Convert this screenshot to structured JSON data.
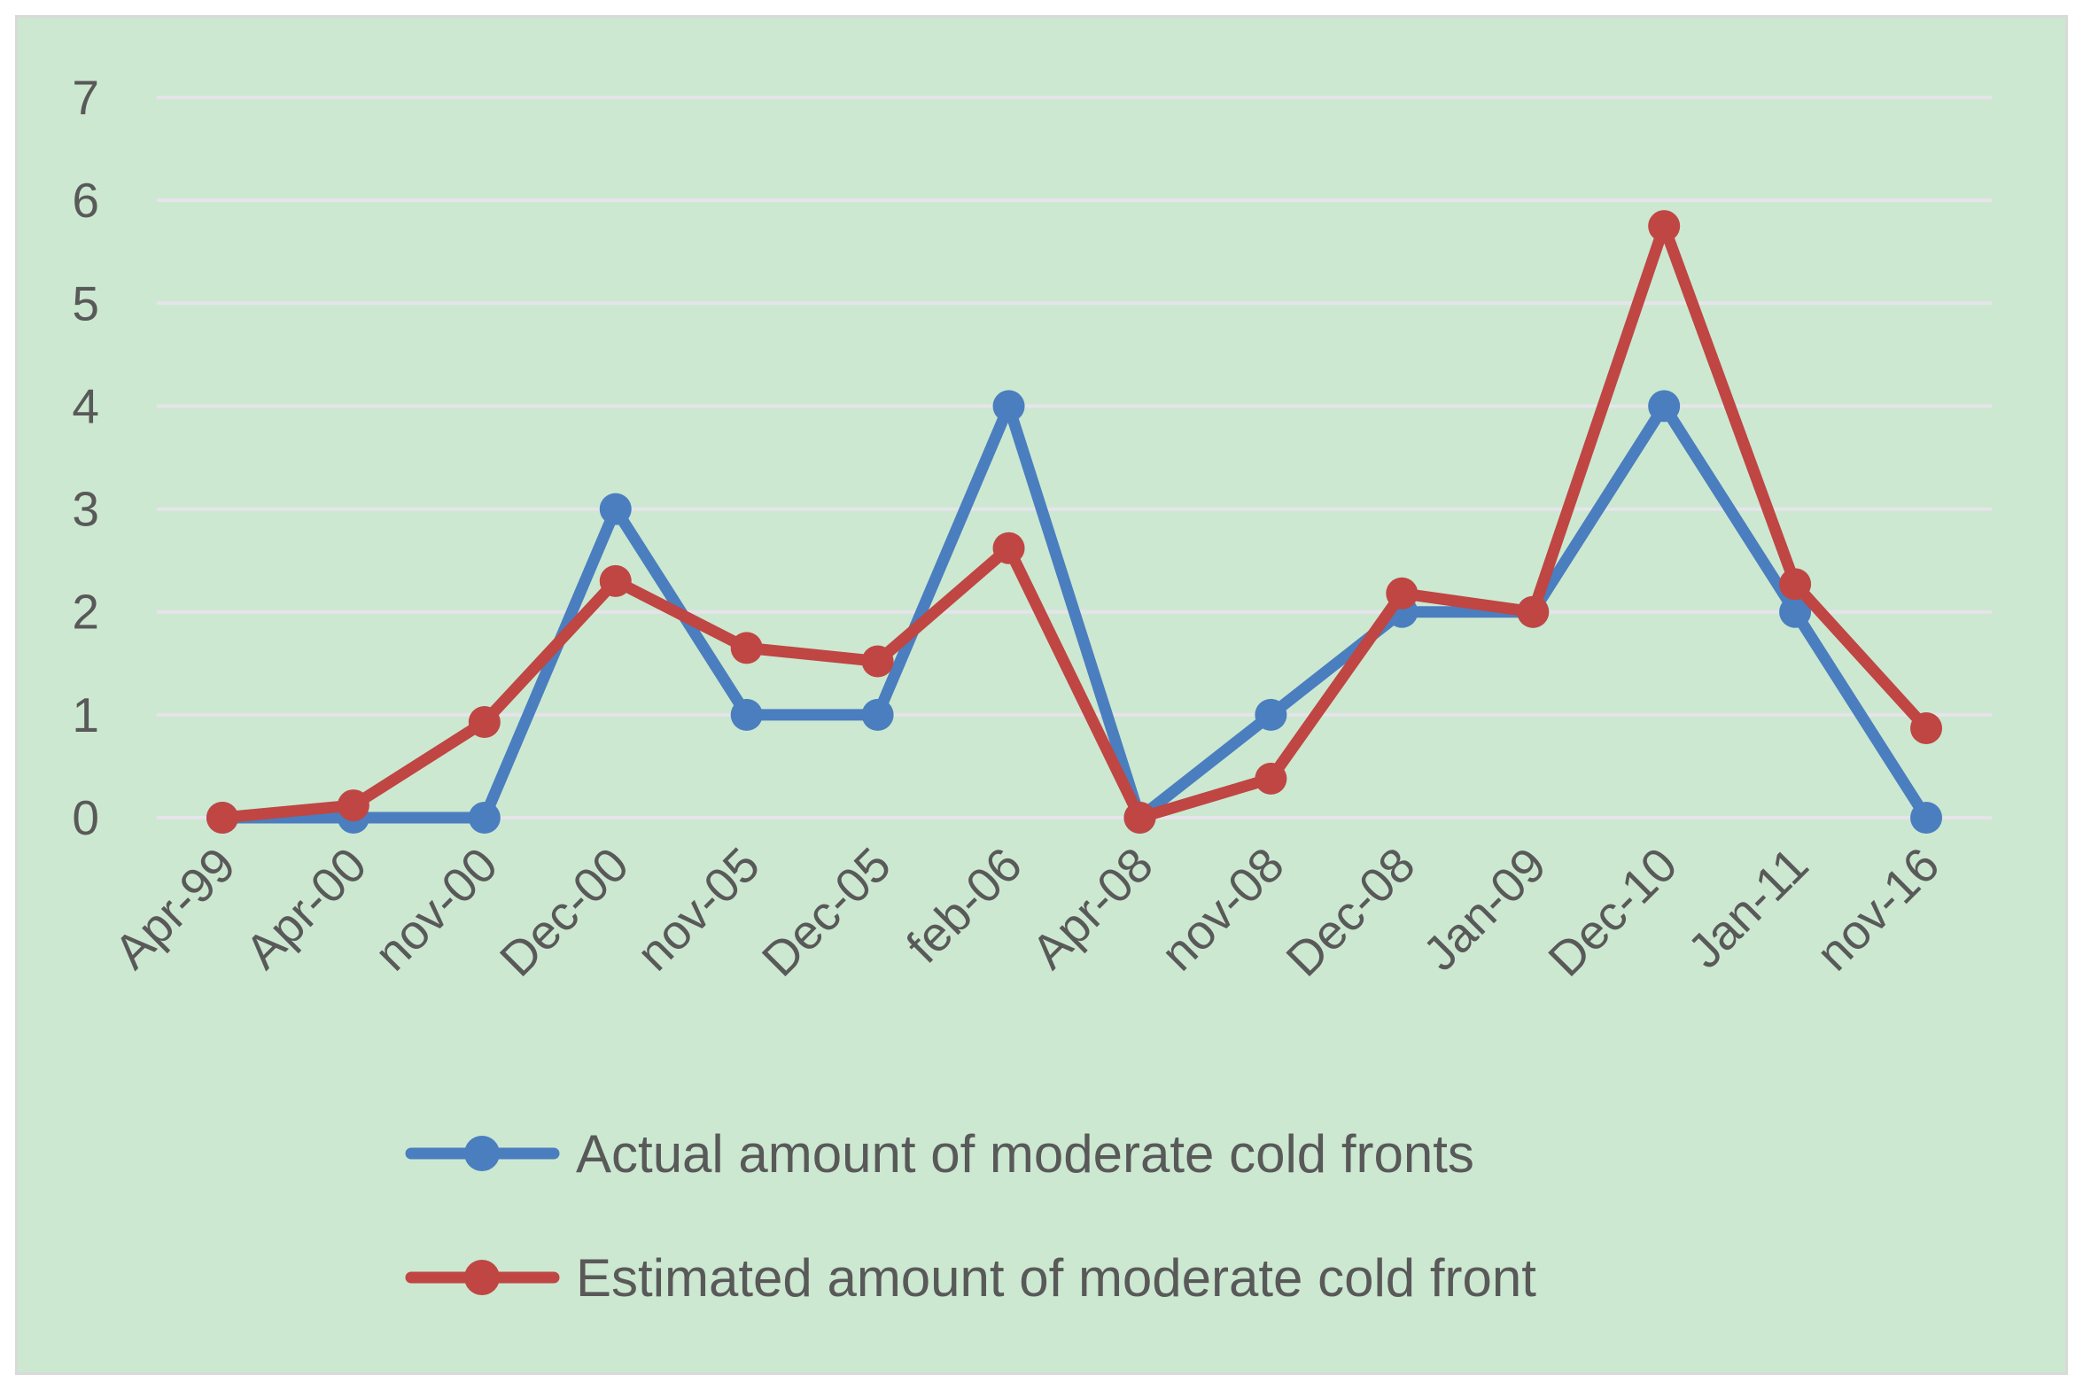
{
  "colors": {
    "background": "#cce8d1",
    "gridline": "#e6e4ea",
    "text": "#595959",
    "actual": "#4a7ebf",
    "estimated": "#bf4643"
  },
  "chart_data": {
    "type": "line",
    "title": "",
    "xlabel": "",
    "ylabel": "",
    "categories": [
      "Apr-99",
      "Apr-00",
      "nov-00",
      "Dec-00",
      "nov-05",
      "Dec-05",
      "feb-06",
      "Apr-08",
      "nov-08",
      "Dec-08",
      "Jan-09",
      "Dec-10",
      "Jan-11",
      "nov-16"
    ],
    "ylim": [
      0,
      7
    ],
    "yticks": [
      "0",
      "1",
      "2",
      "3",
      "4",
      "5",
      "6",
      "7"
    ],
    "grid": true,
    "legend_position": "bottom",
    "series": [
      {
        "name": "Actual amount of moderate cold fronts",
        "color": "#4a7ebf",
        "values": [
          0,
          0,
          0,
          3,
          1,
          1,
          4,
          0,
          1,
          2,
          2,
          4,
          2,
          0
        ]
      },
      {
        "name": "Estimated amount of moderate cold front",
        "color": "#bf4643",
        "values": [
          0,
          0.12,
          0.93,
          2.3,
          1.65,
          1.52,
          2.62,
          0,
          0.38,
          2.18,
          2.0,
          5.75,
          2.27,
          0.87
        ]
      }
    ]
  }
}
